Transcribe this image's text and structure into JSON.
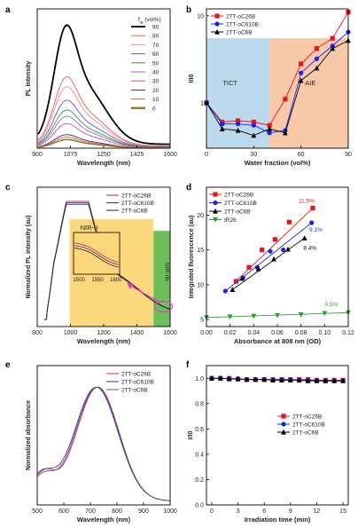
{
  "chart_data": [
    {
      "panel": "a",
      "type": "line",
      "xlabel": "Wavelength (nm)",
      "ylabel": "PL intensity",
      "xlim": [
        900,
        1600
      ],
      "xticks": [
        900,
        1075,
        1250,
        1425,
        1600
      ],
      "legend_title": "f_w (vol%)",
      "legend_location": "top-right",
      "series": [
        {
          "name": "90",
          "color": "#000000",
          "peak": 1.0
        },
        {
          "name": "80",
          "color": "#e05a5a",
          "peak": 0.58
        },
        {
          "name": "70",
          "color": "#ef8a8a",
          "peak": 0.5
        },
        {
          "name": "60",
          "color": "#5555dd",
          "peak": 0.39
        },
        {
          "name": "50",
          "color": "#2f9a2f",
          "peak": 0.31
        },
        {
          "name": "40",
          "color": "#a060c0",
          "peak": 0.26
        },
        {
          "name": "30",
          "color": "#d050a0",
          "peak": 0.2
        },
        {
          "name": "20",
          "color": "#5a1e7a",
          "peak": 0.11
        },
        {
          "name": "10",
          "color": "#d06060",
          "peak": 0.09
        },
        {
          "name": "0",
          "color": "#8a8222",
          "peak": 0.07
        }
      ]
    },
    {
      "panel": "b",
      "type": "line",
      "xlabel": "Water fraction (vol%)",
      "ylabel": "I/I0",
      "xlim": [
        0,
        90
      ],
      "xticks": [
        0,
        30,
        60,
        90
      ],
      "yscale": "log",
      "ylim": [
        0.3,
        12
      ],
      "yticks": [
        1,
        10
      ],
      "legend_location": "top-left",
      "regions": [
        {
          "label": "TICT",
          "x_from": 0,
          "x_to": 40,
          "color": "#bdd9ee"
        },
        {
          "label": "AIE",
          "x_from": 40,
          "x_to": 90,
          "color": "#f8c9a8"
        }
      ],
      "x": [
        0,
        10,
        20,
        30,
        40,
        50,
        60,
        70,
        80,
        90
      ],
      "series": [
        {
          "name": "2TT-oC26B",
          "color": "#e8141a",
          "marker": "square",
          "values": [
            1.0,
            0.6,
            0.62,
            0.6,
            0.55,
            1.1,
            2.8,
            4.2,
            5.5,
            11.0
          ]
        },
        {
          "name": "2TT-oC610B",
          "color": "#1a24e8",
          "marker": "circle",
          "values": [
            1.0,
            0.57,
            0.57,
            0.55,
            0.45,
            0.48,
            2.2,
            3.2,
            4.5,
            6.5
          ]
        },
        {
          "name": "2TT-oC6B",
          "color": "#000000",
          "marker": "triangle",
          "values": [
            1.0,
            0.5,
            0.48,
            0.42,
            0.5,
            0.45,
            1.8,
            2.5,
            4.2,
            5.2
          ]
        }
      ]
    },
    {
      "panel": "c",
      "type": "line",
      "xlabel": "Wavelength (nm)",
      "ylabel": "Normalized PL intensity (au)",
      "xlim": [
        800,
        1600
      ],
      "xticks": [
        800,
        1000,
        1200,
        1400,
        1600
      ],
      "legend_location": "top-right",
      "region_labels": [
        "NIR-II",
        "NIR-IIb"
      ],
      "inset": {
        "xticks": [
          1500,
          1550,
          1600
        ]
      },
      "series": [
        {
          "name": "2TT-oC26B",
          "color": "#c62a2a"
        },
        {
          "name": "2TT-oC610B",
          "color": "#2a2ac6"
        },
        {
          "name": "2TT-oC6B",
          "color": "#222222"
        }
      ]
    },
    {
      "panel": "d",
      "type": "scatter",
      "xlabel": "Absorbance at 808 nm (OD)",
      "ylabel": "Integrated fluorescence (au)",
      "xlim": [
        0.0,
        0.12
      ],
      "xticks": [
        "0.00",
        "0.02",
        "0.04",
        "0.06",
        "0.08",
        "0.10",
        "0.12"
      ],
      "ylim": [
        4,
        24
      ],
      "yticks": [
        5,
        10,
        15,
        20
      ],
      "legend_location": "top-left",
      "series": [
        {
          "name": "2TT-oC26B",
          "color": "#e8141a",
          "marker": "square",
          "annotation": "11.5%",
          "x": [
            0.025,
            0.036,
            0.047,
            0.058,
            0.07,
            0.09
          ],
          "values": [
            10.5,
            12.5,
            15.0,
            16.5,
            19.0,
            21.0
          ]
        },
        {
          "name": "2TT-oC610B",
          "color": "#1a24e8",
          "marker": "circle",
          "annotation": "9.1%",
          "x": [
            0.016,
            0.031,
            0.043,
            0.054,
            0.065,
            0.089
          ],
          "values": [
            9.1,
            11.0,
            12.5,
            14.8,
            15.0,
            18.9
          ]
        },
        {
          "name": "2TT-oC6B",
          "color": "#000000",
          "marker": "triangle",
          "annotation": "8.4%",
          "x": [
            0.022,
            0.03,
            0.044,
            0.057,
            0.069,
            0.083
          ],
          "values": [
            9.3,
            10.9,
            12.3,
            13.7,
            15.1,
            16.7
          ]
        },
        {
          "name": "IR26",
          "color": "#2f9a2f",
          "marker": "triangle-down",
          "annotation": "0.5%",
          "x": [
            0.0,
            0.02,
            0.04,
            0.06,
            0.08,
            0.1,
            0.12
          ],
          "values": [
            5.3,
            5.4,
            5.5,
            5.6,
            5.7,
            5.9,
            6.0
          ]
        }
      ]
    },
    {
      "panel": "e",
      "type": "line",
      "xlabel": "Wavelength (nm)",
      "ylabel": "Normalized absorbance",
      "xlim": [
        500,
        1000
      ],
      "xticks": [
        500,
        600,
        700,
        800,
        900,
        1000
      ],
      "legend_location": "top-right",
      "series": [
        {
          "name": "2TT-oC26B",
          "color": "#d93030"
        },
        {
          "name": "2TT-oC610B",
          "color": "#3030d9"
        },
        {
          "name": "2TT-oC6B",
          "color": "#555555"
        }
      ]
    },
    {
      "panel": "f",
      "type": "line",
      "xlabel": "Irradiation time (min)",
      "ylabel": "I/I0",
      "xlim": [
        0,
        15
      ],
      "xticks": [
        0,
        3,
        6,
        9,
        12,
        15
      ],
      "ylim": [
        0.0,
        1.1
      ],
      "yticks": [
        "0.0",
        "0.2",
        "0.4",
        "0.6",
        "0.8",
        "1.0"
      ],
      "legend_location": "center-right",
      "x": [
        0,
        1,
        2,
        3,
        4,
        5,
        6,
        7,
        8,
        9,
        10,
        11,
        12,
        13,
        14,
        15
      ],
      "series": [
        {
          "name": "2TT-oC26B",
          "color": "#e8141a",
          "marker": "square",
          "values": [
            1.0,
            1.0,
            1.0,
            0.995,
            0.99,
            0.99,
            0.99,
            0.99,
            0.99,
            0.99,
            0.99,
            0.99,
            0.985,
            0.985,
            0.985,
            0.985
          ]
        },
        {
          "name": "2TT-oC610B",
          "color": "#1a24e8",
          "marker": "circle",
          "values": [
            1.0,
            1.0,
            0.995,
            0.995,
            0.99,
            0.99,
            0.99,
            0.99,
            0.99,
            0.99,
            0.985,
            0.985,
            0.985,
            0.98,
            0.98,
            0.98
          ]
        },
        {
          "name": "2TT-oC6B",
          "color": "#000000",
          "marker": "triangle",
          "values": [
            1.0,
            1.0,
            0.995,
            0.995,
            0.99,
            0.99,
            0.99,
            0.985,
            0.985,
            0.985,
            0.985,
            0.98,
            0.98,
            0.98,
            0.98,
            0.98
          ]
        }
      ]
    }
  ]
}
